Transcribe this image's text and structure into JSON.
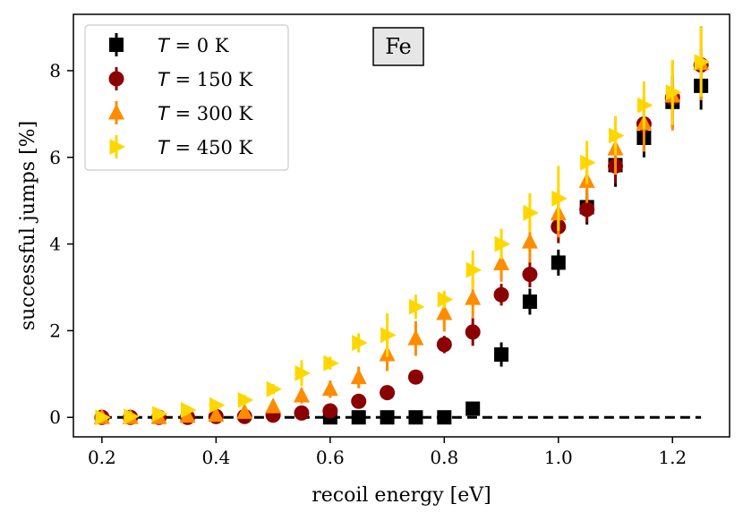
{
  "chart_data": {
    "type": "scatter",
    "title": "",
    "panel_label": "Fe",
    "xlabel": "recoil energy [eV]",
    "ylabel": "successful jumps [%]",
    "xlim": [
      0.15,
      1.3
    ],
    "ylim": [
      -0.45,
      9.3
    ],
    "x_ticks": [
      0.2,
      0.4,
      0.6,
      0.8,
      1.0,
      1.2
    ],
    "x_tick_labels": [
      "0.2",
      "0.4",
      "0.6",
      "0.8",
      "1.0",
      "1.2"
    ],
    "y_ticks": [
      0,
      2,
      4,
      6,
      8
    ],
    "y_tick_labels": [
      "0",
      "2",
      "4",
      "6",
      "8"
    ],
    "legend_position": "top-left",
    "grid": false,
    "reference_line": {
      "y": 0,
      "x_range": [
        0.2,
        1.25
      ],
      "style": "dashed",
      "color": "#000000"
    },
    "series": [
      {
        "name": "T = 0 K",
        "label_symbol": "T",
        "label_rest": " = 0 K",
        "marker": "square",
        "color": "#000000",
        "x": [
          0.6,
          0.65,
          0.7,
          0.75,
          0.8,
          0.85,
          0.9,
          0.95,
          1.0,
          1.05,
          1.1,
          1.15,
          1.2,
          1.25
        ],
        "y": [
          0.0,
          0.0,
          0.0,
          0.0,
          0.0,
          0.2,
          1.45,
          2.67,
          3.57,
          4.85,
          5.82,
          6.45,
          7.28,
          7.65
        ],
        "err": [
          0.0,
          0.0,
          0.0,
          0.0,
          0.0,
          0.12,
          0.28,
          0.3,
          0.3,
          0.4,
          0.5,
          0.45,
          0.6,
          0.55
        ]
      },
      {
        "name": "T = 150 K",
        "label_symbol": "T",
        "label_rest": " = 150 K",
        "marker": "circle",
        "color": "#8b0000",
        "x": [
          0.2,
          0.25,
          0.3,
          0.35,
          0.4,
          0.45,
          0.5,
          0.55,
          0.6,
          0.65,
          0.7,
          0.75,
          0.8,
          0.85,
          0.9,
          0.95,
          1.0,
          1.05,
          1.1,
          1.15,
          1.2,
          1.25
        ],
        "y": [
          0.0,
          0.0,
          0.0,
          0.0,
          0.02,
          0.02,
          0.05,
          0.1,
          0.15,
          0.37,
          0.57,
          0.93,
          1.68,
          1.97,
          2.83,
          3.3,
          4.4,
          4.8,
          5.8,
          6.77,
          7.38,
          8.13
        ],
        "err": [
          0.0,
          0.0,
          0.0,
          0.0,
          0.03,
          0.03,
          0.04,
          0.06,
          0.08,
          0.1,
          0.12,
          0.15,
          0.2,
          0.32,
          0.25,
          0.3,
          0.38,
          0.3,
          0.4,
          0.35,
          0.5,
          0.4
        ]
      },
      {
        "name": "T = 300 K",
        "label_symbol": "T",
        "label_rest": " = 300 K",
        "marker": "triangle-up",
        "color": "#ff8c00",
        "x": [
          0.2,
          0.25,
          0.3,
          0.35,
          0.4,
          0.45,
          0.5,
          0.55,
          0.6,
          0.65,
          0.7,
          0.75,
          0.8,
          0.85,
          0.9,
          0.95,
          1.0,
          1.05,
          1.1,
          1.15,
          1.2,
          1.25
        ],
        "y": [
          0.0,
          0.0,
          0.0,
          0.03,
          0.05,
          0.12,
          0.25,
          0.5,
          0.65,
          0.92,
          1.45,
          1.82,
          2.4,
          2.75,
          3.55,
          4.05,
          4.7,
          5.45,
          6.2,
          6.78,
          7.42,
          8.17
        ],
        "err": [
          0.0,
          0.0,
          0.0,
          0.03,
          0.05,
          0.08,
          0.12,
          0.18,
          0.2,
          0.25,
          0.38,
          0.4,
          0.42,
          0.45,
          0.42,
          0.48,
          0.55,
          0.5,
          0.6,
          0.65,
          0.8,
          0.85
        ]
      },
      {
        "name": "T = 450 K",
        "label_symbol": "T",
        "label_rest": " = 450 K",
        "marker": "triangle-right",
        "color": "#ffd700",
        "x": [
          0.2,
          0.25,
          0.3,
          0.35,
          0.4,
          0.45,
          0.5,
          0.55,
          0.6,
          0.65,
          0.7,
          0.75,
          0.8,
          0.85,
          0.9,
          0.95,
          1.0,
          1.05,
          1.1,
          1.15,
          1.2,
          1.25
        ],
        "y": [
          0.0,
          0.02,
          0.08,
          0.17,
          0.28,
          0.4,
          0.65,
          1.02,
          1.25,
          1.72,
          1.9,
          2.55,
          2.72,
          3.4,
          4.0,
          4.72,
          5.05,
          5.88,
          6.5,
          7.2,
          7.5,
          8.2
        ],
        "err": [
          0.0,
          0.02,
          0.04,
          0.06,
          0.08,
          0.12,
          0.12,
          0.3,
          0.15,
          0.22,
          0.5,
          0.28,
          0.2,
          0.45,
          0.35,
          0.45,
          0.75,
          0.5,
          0.45,
          0.55,
          0.75,
          0.8
        ]
      }
    ]
  }
}
